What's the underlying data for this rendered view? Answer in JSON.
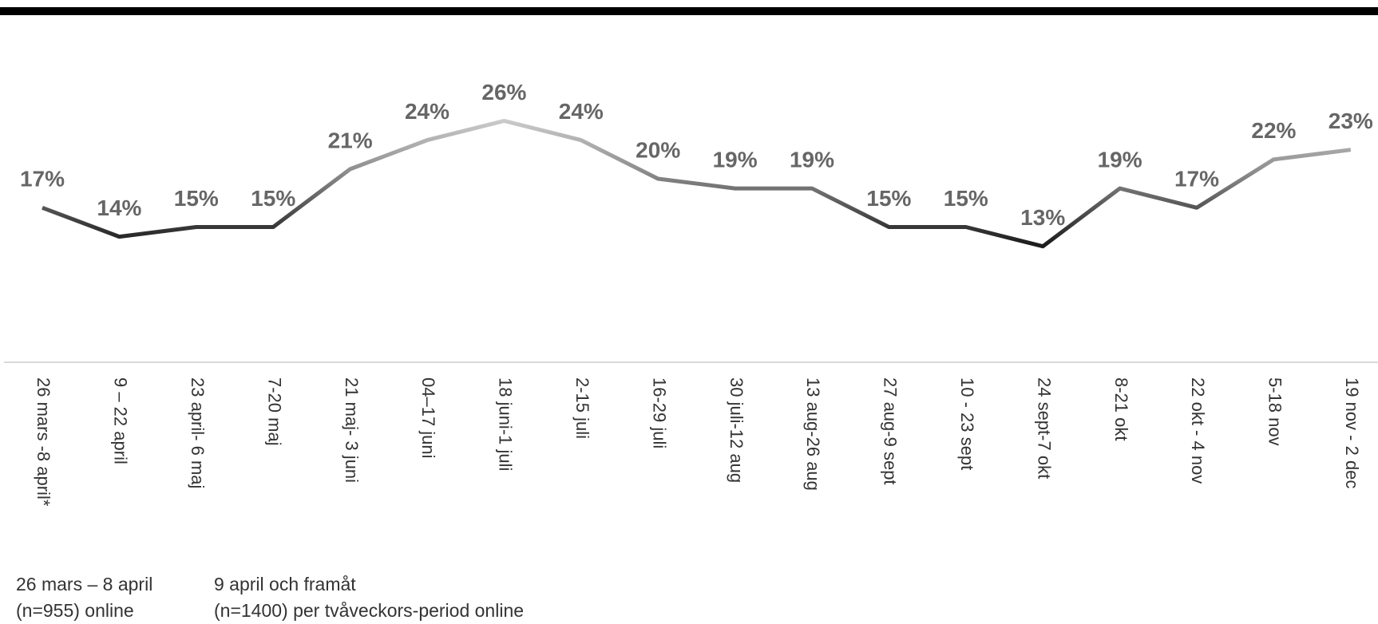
{
  "chart_data": {
    "type": "line",
    "categories": [
      "26 mars -8 april*",
      "9 – 22 april",
      "23 april- 6 maj",
      "7-20 maj",
      "21 maj- 3 juni",
      "04–17 juni",
      "18 juni-1 juli",
      "2-15 juli",
      "16-29 juli",
      "30 juli-12 aug",
      "13 aug-26 aug",
      "27 aug-9 sept",
      "10 - 23 sept",
      "24 sept-7 okt",
      "8-21 okt",
      "22 okt - 4 nov",
      "5-18 nov",
      "19 nov - 2 dec"
    ],
    "values": [
      17,
      14,
      15,
      15,
      21,
      24,
      26,
      24,
      20,
      19,
      19,
      15,
      15,
      13,
      19,
      17,
      22,
      23
    ],
    "value_labels": [
      "17%",
      "14%",
      "15%",
      "15%",
      "21%",
      "24%",
      "26%",
      "24%",
      "20%",
      "19%",
      "19%",
      "15%",
      "15%",
      "13%",
      "19%",
      "17%",
      "22%",
      "23%"
    ],
    "footnotes": [
      [
        "26 mars – 8 april",
        "(n=955) online"
      ],
      [
        "9 april och framåt",
        "(n=1400) per tvåveckors-period online"
      ]
    ]
  }
}
